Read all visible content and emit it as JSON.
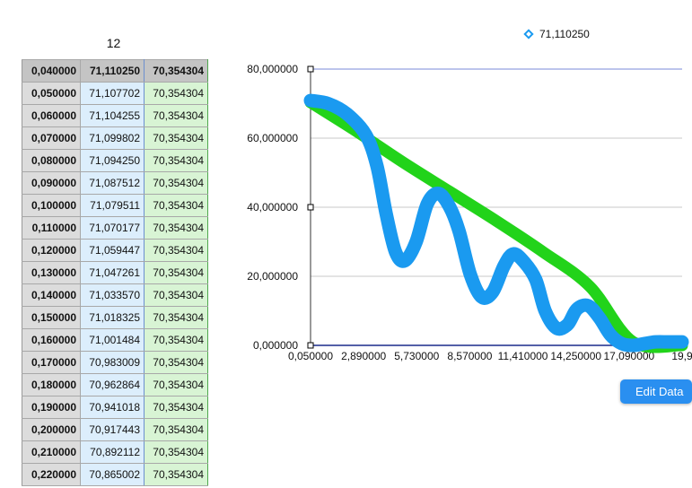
{
  "sheet": {
    "title": "12",
    "header": [
      "0,040000",
      "71,110250",
      "70,354304"
    ],
    "rows": [
      [
        "0,050000",
        "71,107702",
        "70,354304"
      ],
      [
        "0,060000",
        "71,104255",
        "70,354304"
      ],
      [
        "0,070000",
        "71,099802",
        "70,354304"
      ],
      [
        "0,080000",
        "71,094250",
        "70,354304"
      ],
      [
        "0,090000",
        "71,087512",
        "70,354304"
      ],
      [
        "0,100000",
        "71,079511",
        "70,354304"
      ],
      [
        "0,110000",
        "71,070177",
        "70,354304"
      ],
      [
        "0,120000",
        "71,059447",
        "70,354304"
      ],
      [
        "0,130000",
        "71,047261",
        "70,354304"
      ],
      [
        "0,140000",
        "71,033570",
        "70,354304"
      ],
      [
        "0,150000",
        "71,018325",
        "70,354304"
      ],
      [
        "0,160000",
        "71,001484",
        "70,354304"
      ],
      [
        "0,170000",
        "70,983009",
        "70,354304"
      ],
      [
        "0,180000",
        "70,962864",
        "70,354304"
      ],
      [
        "0,190000",
        "70,941018",
        "70,354304"
      ],
      [
        "0,200000",
        "70,917443",
        "70,354304"
      ],
      [
        "0,210000",
        "70,892112",
        "70,354304"
      ],
      [
        "0,220000",
        "70,865002",
        "70,354304"
      ]
    ]
  },
  "edit_button_label": "Edit Data",
  "chart_data": {
    "type": "line",
    "legend": {
      "label": "71,110250",
      "placement": "top"
    },
    "ylim": [
      0,
      80
    ],
    "y_ticks": [
      "0,000000",
      "20,000000",
      "40,000000",
      "60,000000",
      "80,000000"
    ],
    "y_tick_values": [
      0,
      20,
      40,
      60,
      80
    ],
    "x_ticks": [
      "0,050000",
      "2,890000",
      "5,730000",
      "8,570000",
      "11,410000",
      "14,250000",
      "17,090000",
      "19,9"
    ],
    "x_tick_values": [
      0.05,
      2.89,
      5.73,
      8.57,
      11.41,
      14.25,
      17.09,
      19.93
    ],
    "xlim": [
      0.05,
      19.93
    ],
    "grid": true,
    "series": [
      {
        "color": "#22d31a",
        "x": [
          0.05,
          2.5,
          5.0,
          7.5,
          10.0,
          12.5,
          15.0,
          17.3,
          19.93
        ],
        "values": [
          70.35,
          62.0,
          53.0,
          44.5,
          36.0,
          27.0,
          17.0,
          1.0,
          0.0
        ]
      },
      {
        "color": "#1a9af0",
        "x": [
          0.05,
          1.0,
          2.0,
          3.0,
          3.6,
          4.1,
          4.6,
          5.1,
          5.7,
          6.3,
          6.9,
          7.5,
          8.0,
          8.6,
          9.2,
          9.8,
          10.4,
          10.9,
          11.5,
          12.1,
          12.6,
          13.2,
          13.8,
          14.3,
          14.9,
          15.5,
          16.1,
          16.7,
          17.3,
          17.9,
          18.5,
          19.2,
          19.93
        ],
        "values": [
          70.9,
          70.0,
          67.0,
          61.0,
          52.0,
          38.0,
          27.0,
          24.5,
          30.0,
          41.0,
          44.0,
          40.0,
          33.0,
          20.5,
          14.0,
          15.5,
          23.0,
          26.5,
          24.0,
          19.0,
          10.0,
          5.0,
          6.0,
          10.5,
          11.5,
          8.0,
          3.0,
          0.5,
          0.0,
          0.5,
          1.0,
          1.0,
          1.0
        ]
      }
    ]
  }
}
